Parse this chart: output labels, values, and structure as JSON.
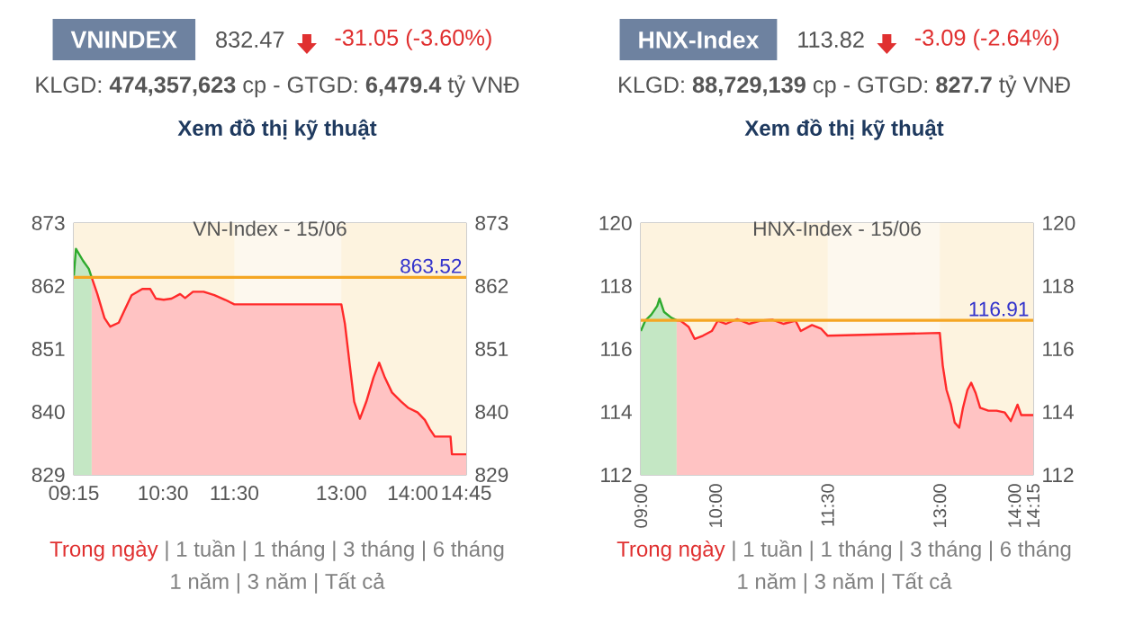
{
  "chart_data": [
    {
      "type": "area",
      "title": "VN-Index - 15/06",
      "annotations": [
        "VNINDEX",
        "832.47",
        "-31.05 (-3.60%)",
        "KLGD: **474,357,623** cp - GTGD: **6,479.4** tỷ VNĐ",
        "Xem đồ thị kỹ thuật",
        "Trong ngày",
        "| 1 tuần | 1 tháng | 3 tháng | 6 tháng",
        "1 năm | 3 năm | Tất cả"
      ],
      "series": [
        {
          "color": "#2eaa2e",
          "x": [
            9.25,
            9.28,
            9.38,
            9.46,
            9.5
          ],
          "values": [
            863.8,
            868.5,
            866.4,
            865.0,
            863.5
          ]
        },
        {
          "color": "#ff2a2a",
          "x": [
            9.5,
            9.58,
            9.68,
            9.76,
            9.88,
            9.95,
            10.06,
            10.21,
            10.32,
            10.4,
            10.51,
            10.62,
            10.74,
            10.81,
            10.92,
            11.07,
            11.22,
            11.37,
            11.5,
            13.0,
            13.05,
            13.12,
            13.18,
            13.26,
            13.35,
            13.45,
            13.53,
            13.61,
            13.71,
            13.84,
            13.94,
            14.07,
            14.17,
            14.24,
            14.31,
            14.53,
            14.55,
            14.75
          ],
          "values": [
            863.5,
            860.6,
            856.4,
            854.9,
            855.6,
            857.5,
            860.4,
            861.5,
            861.5,
            859.8,
            859.6,
            859.8,
            860.6,
            859.9,
            861.0,
            861.0,
            860.4,
            859.6,
            858.8,
            858.8,
            855.4,
            848.0,
            841.8,
            838.8,
            841.8,
            846.0,
            848.6,
            846.0,
            843.4,
            841.8,
            840.7,
            839.9,
            838.6,
            837.0,
            835.7,
            835.7,
            832.6,
            832.6
          ]
        }
      ],
      "xlim": [
        9.25,
        14.75
      ],
      "xticks": [
        {
          "value": 9.25,
          "label": "09:15"
        },
        {
          "value": 10.5,
          "label": "10:30"
        },
        {
          "value": 11.5,
          "label": "11:30"
        },
        {
          "value": 13,
          "label": "13:00"
        },
        {
          "value": 14,
          "label": "14:00"
        },
        {
          "value": 14.75,
          "label": "14:45"
        }
      ],
      "ylim": [
        829,
        873
      ],
      "yticks": [
        829,
        840,
        851,
        862,
        873
      ],
      "y2lim": [
        829,
        873
      ],
      "y2ticks": [
        829,
        840,
        851,
        862,
        873
      ],
      "ref_lines": [
        {
          "axis": "y",
          "value": 863.52,
          "label": "863.52",
          "color": "#f5a623"
        }
      ],
      "bands": [
        {
          "axis": "x",
          "from": 9.25,
          "to": 14.75,
          "color": "#fdf3df"
        },
        {
          "axis": "x",
          "from": 11.5,
          "to": 13,
          "color": "#fdf8ee"
        }
      ],
      "grid": true
    },
    {
      "type": "area",
      "title": "HNX-Index - 15/06",
      "annotations": [
        "HNX-Index",
        "113.82",
        "-3.09 (-2.64%)",
        "KLGD: **88,729,139** cp - GTGD: **827.7** tỷ VNĐ",
        "Xem đồ thị kỹ thuật",
        "Trong ngày",
        "| 1 tuần | 1 tháng | 3 tháng | 6 tháng",
        "1 năm | 3 năm | Tất cả"
      ],
      "series": [
        {
          "color": "#2eaa2e",
          "x": [
            9.0,
            9.06,
            9.14,
            9.22,
            9.25,
            9.31,
            9.41,
            9.48
          ],
          "values": [
            116.57,
            116.9,
            117.09,
            117.37,
            117.6,
            117.18,
            116.99,
            116.91
          ]
        },
        {
          "color": "#ff2a2a",
          "x": [
            9.48,
            9.53,
            9.64,
            9.72,
            9.83,
            9.95,
            10.03,
            10.14,
            10.29,
            10.45,
            10.6,
            10.76,
            10.91,
            11.07,
            11.14,
            11.29,
            11.41,
            11.5,
            13.0,
            13.04,
            13.09,
            13.15,
            13.2,
            13.26,
            13.31,
            13.37,
            13.42,
            13.48,
            13.54,
            13.65,
            13.76,
            13.87,
            13.95,
            14.04,
            14.09,
            14.25
          ],
          "values": [
            116.91,
            116.9,
            116.7,
            116.32,
            116.42,
            116.57,
            116.9,
            116.8,
            116.95,
            116.8,
            116.9,
            116.93,
            116.8,
            116.9,
            116.57,
            116.76,
            116.65,
            116.42,
            116.51,
            115.47,
            114.7,
            114.23,
            113.66,
            113.5,
            114.13,
            114.7,
            114.93,
            114.6,
            114.13,
            114.04,
            114.04,
            113.98,
            113.71,
            114.23,
            113.9,
            113.9
          ]
        }
      ],
      "xlim": [
        9.0,
        14.25
      ],
      "xticks": [
        {
          "value": 9,
          "label": "09:00"
        },
        {
          "value": 10,
          "label": "10:00"
        },
        {
          "value": 11.5,
          "label": "11:30"
        },
        {
          "value": 13,
          "label": "13:00"
        },
        {
          "value": 14,
          "label": "14:00"
        },
        {
          "value": 14.25,
          "label": "14:15"
        }
      ],
      "ylim": [
        112,
        120
      ],
      "yticks": [
        112,
        114,
        116,
        118,
        120
      ],
      "y2lim": [
        112,
        120
      ],
      "y2ticks": [
        112,
        114,
        116,
        118,
        120
      ],
      "ref_lines": [
        {
          "axis": "y",
          "value": 116.91,
          "label": "116.91",
          "color": "#f5a623"
        }
      ],
      "bands": [
        {
          "axis": "x",
          "from": 9.0,
          "to": 14.25,
          "color": "#fdf3df"
        },
        {
          "axis": "x",
          "from": 11.5,
          "to": 13,
          "color": "#fdf8ee"
        }
      ],
      "grid": true
    }
  ]
}
